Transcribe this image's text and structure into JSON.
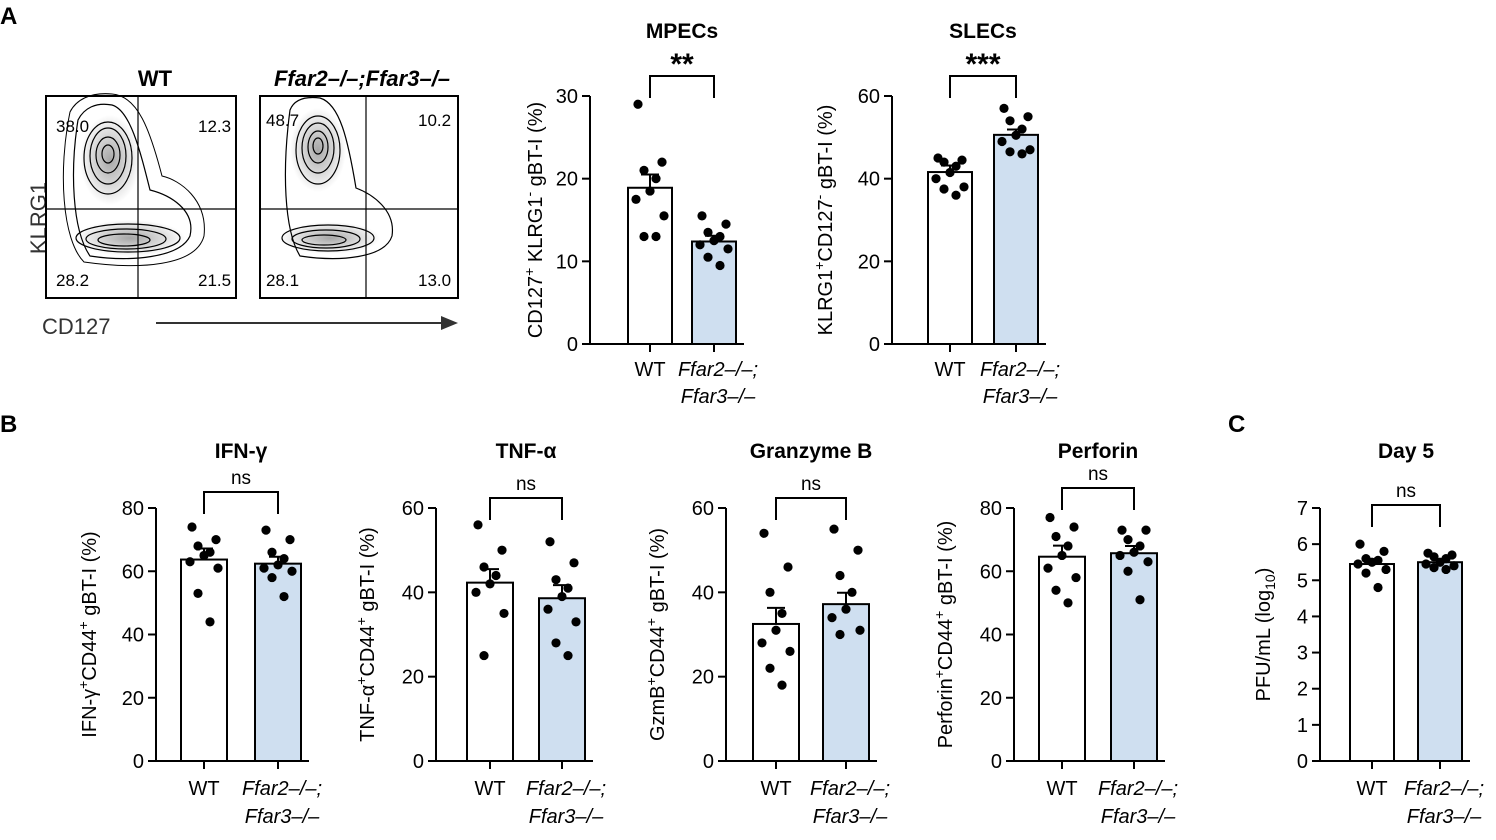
{
  "figure": {
    "panel_labels": [
      "A",
      "B",
      "C"
    ],
    "flow": {
      "y_axis_label": "KLRG1",
      "x_axis_label": "CD127",
      "plots": [
        {
          "title": "WT",
          "quadrants": {
            "upper_left": "38.0",
            "upper_right": "12.3",
            "lower_left": "28.2",
            "lower_right": "21.5"
          }
        },
        {
          "title": "Ffar2–/–;Ffar3–/–",
          "quadrants": {
            "upper_left": "48.7",
            "upper_right": "10.2",
            "lower_left": "28.1",
            "lower_right": "13.0"
          }
        }
      ]
    },
    "colors": {
      "wt_fill": "#ffffff",
      "ko_fill": "#cfdff0",
      "stroke": "#000000",
      "arrow": "#333333"
    }
  },
  "chart_data": [
    {
      "id": "mpecs",
      "type": "bar",
      "title": "MPECs",
      "ylabel_parts": [
        "CD127",
        "+",
        " KLRG1",
        "-",
        " gBT-I (%)"
      ],
      "ylim": [
        0,
        30
      ],
      "yticks": [
        "0",
        "10",
        "20",
        "30"
      ],
      "categories": [
        "WT",
        "Ffar2–/–;",
        "Ffar3–/–"
      ],
      "significance": "**",
      "series": [
        {
          "name": "WT",
          "mean": 18.9,
          "sem": 1.6,
          "points": [
            29.0,
            22.0,
            21.0,
            20.0,
            18.5,
            17.5,
            15.5,
            13.0,
            13.0
          ]
        },
        {
          "name": "Ffar2–/–;Ffar3–/–",
          "mean": 12.4,
          "sem": 0.7,
          "points": [
            15.5,
            14.5,
            13.5,
            13.0,
            12.5,
            12.0,
            11.5,
            10.5,
            9.5
          ]
        }
      ]
    },
    {
      "id": "slecs",
      "type": "bar",
      "title": "SLECs",
      "ylabel_parts": [
        "KLRG1",
        "+",
        "CD127",
        "-",
        " gBT-I (%)"
      ],
      "ylim": [
        0,
        60
      ],
      "yticks": [
        "0",
        "20",
        "40",
        "60"
      ],
      "categories": [
        "WT",
        "Ffar2–/–;",
        "Ffar3–/–"
      ],
      "significance": "***",
      "series": [
        {
          "name": "WT",
          "mean": 41.6,
          "sem": 1.6,
          "points": [
            45.0,
            44.5,
            44.0,
            43.0,
            41.5,
            40.0,
            38.0,
            37.5,
            36.0
          ]
        },
        {
          "name": "Ffar2–/–;Ffar3–/–",
          "mean": 50.6,
          "sem": 1.3,
          "points": [
            57.0,
            55.0,
            54.0,
            52.0,
            50.5,
            49.0,
            47.0,
            46.5,
            46.0
          ]
        }
      ]
    },
    {
      "id": "ifng",
      "type": "bar",
      "title": "IFN-γ",
      "ylabel_parts": [
        "IFN-γ",
        "+",
        "CD44",
        "+",
        " gBT-I (%)"
      ],
      "ylim": [
        0,
        80
      ],
      "yticks": [
        "0",
        "20",
        "40",
        "60",
        "80"
      ],
      "categories": [
        "WT",
        "Ffar2–/–;",
        "Ffar3–/–"
      ],
      "significance": "ns",
      "series": [
        {
          "name": "WT",
          "mean": 63.7,
          "sem": 3.5,
          "points": [
            74.0,
            70.0,
            68.0,
            66.0,
            65.0,
            63.0,
            61.0,
            53.0,
            44.0
          ]
        },
        {
          "name": "Ffar2–/–;Ffar3–/–",
          "mean": 62.4,
          "sem": 2.2,
          "points": [
            73.0,
            70.0,
            66.0,
            64.0,
            62.0,
            61.0,
            60.0,
            58.0,
            52.0
          ]
        }
      ]
    },
    {
      "id": "tnfa",
      "type": "bar",
      "title": "TNF-α",
      "ylabel_parts": [
        "TNF-α",
        "+",
        "CD44",
        "+",
        " gBT-I (%)"
      ],
      "ylim": [
        0,
        60
      ],
      "yticks": [
        "0",
        "20",
        "40",
        "60"
      ],
      "categories": [
        "WT",
        "Ffar2–/–;",
        "Ffar3–/–"
      ],
      "significance": "ns",
      "series": [
        {
          "name": "WT",
          "mean": 42.3,
          "sem": 3.2,
          "points": [
            56.0,
            50.0,
            46.0,
            44.0,
            42.0,
            40.0,
            35.0,
            25.0
          ]
        },
        {
          "name": "Ffar2–/–;Ffar3–/–",
          "mean": 38.6,
          "sem": 3.1,
          "points": [
            52.0,
            47.0,
            43.0,
            41.0,
            39.0,
            36.0,
            33.0,
            28.0,
            25.0
          ]
        }
      ]
    },
    {
      "id": "gzmb",
      "type": "bar",
      "title": "Granzyme B",
      "ylabel_parts": [
        "GzmB",
        "+",
        "CD44",
        "+",
        " gBT-I (%)"
      ],
      "ylim": [
        0,
        60
      ],
      "yticks": [
        "0",
        "20",
        "40",
        "60"
      ],
      "categories": [
        "WT",
        "Ffar2–/–;",
        "Ffar3–/–"
      ],
      "significance": "ns",
      "series": [
        {
          "name": "WT",
          "mean": 32.5,
          "sem": 3.8,
          "points": [
            54.0,
            46.0,
            40.0,
            35.0,
            31.0,
            28.0,
            26.0,
            22.0,
            18.0
          ]
        },
        {
          "name": "Ffar2–/–;Ffar3–/–",
          "mean": 37.2,
          "sem": 2.7,
          "points": [
            55.0,
            50.0,
            44.0,
            40.0,
            36.0,
            34.0,
            31.0,
            30.0
          ]
        }
      ]
    },
    {
      "id": "perforin",
      "type": "bar",
      "title": "Perforin",
      "ylabel_parts": [
        "Perforin",
        "+",
        "CD44",
        "+",
        " gBT-I (%)"
      ],
      "ylim": [
        0,
        80
      ],
      "yticks": [
        "0",
        "20",
        "40",
        "60",
        "80"
      ],
      "categories": [
        "WT",
        "Ffar2–/–;",
        "Ffar3–/–"
      ],
      "significance": "ns",
      "series": [
        {
          "name": "WT",
          "mean": 64.6,
          "sem": 3.5,
          "points": [
            77.0,
            74.0,
            71.0,
            68.0,
            65.0,
            61.0,
            58.0,
            54.0,
            50.0
          ]
        },
        {
          "name": "Ffar2–/–;Ffar3–/–",
          "mean": 65.7,
          "sem": 2.3,
          "points": [
            73.0,
            73.0,
            70.0,
            68.0,
            66.0,
            65.0,
            63.0,
            60.0,
            51.0
          ]
        }
      ]
    },
    {
      "id": "day5",
      "type": "bar",
      "title": "Day 5",
      "ylabel_parts": [
        "PFU/mL (log",
        "",
        "",
        "10",
        ")"
      ],
      "ylim": [
        0,
        7
      ],
      "yticks": [
        "0",
        "1",
        "2",
        "3",
        "4",
        "5",
        "6",
        "7"
      ],
      "categories": [
        "WT",
        "Ffar2–/–;",
        "Ffar3–/–"
      ],
      "significance": "ns",
      "series": [
        {
          "name": "WT",
          "mean": 5.45,
          "sem": 0.12,
          "points": [
            6.0,
            5.8,
            5.6,
            5.55,
            5.5,
            5.45,
            5.3,
            5.2,
            4.8
          ]
        },
        {
          "name": "Ffar2–/–;Ffar3–/–",
          "mean": 5.5,
          "sem": 0.07,
          "points": [
            5.75,
            5.7,
            5.65,
            5.6,
            5.5,
            5.45,
            5.4,
            5.35,
            5.3
          ]
        }
      ]
    }
  ]
}
